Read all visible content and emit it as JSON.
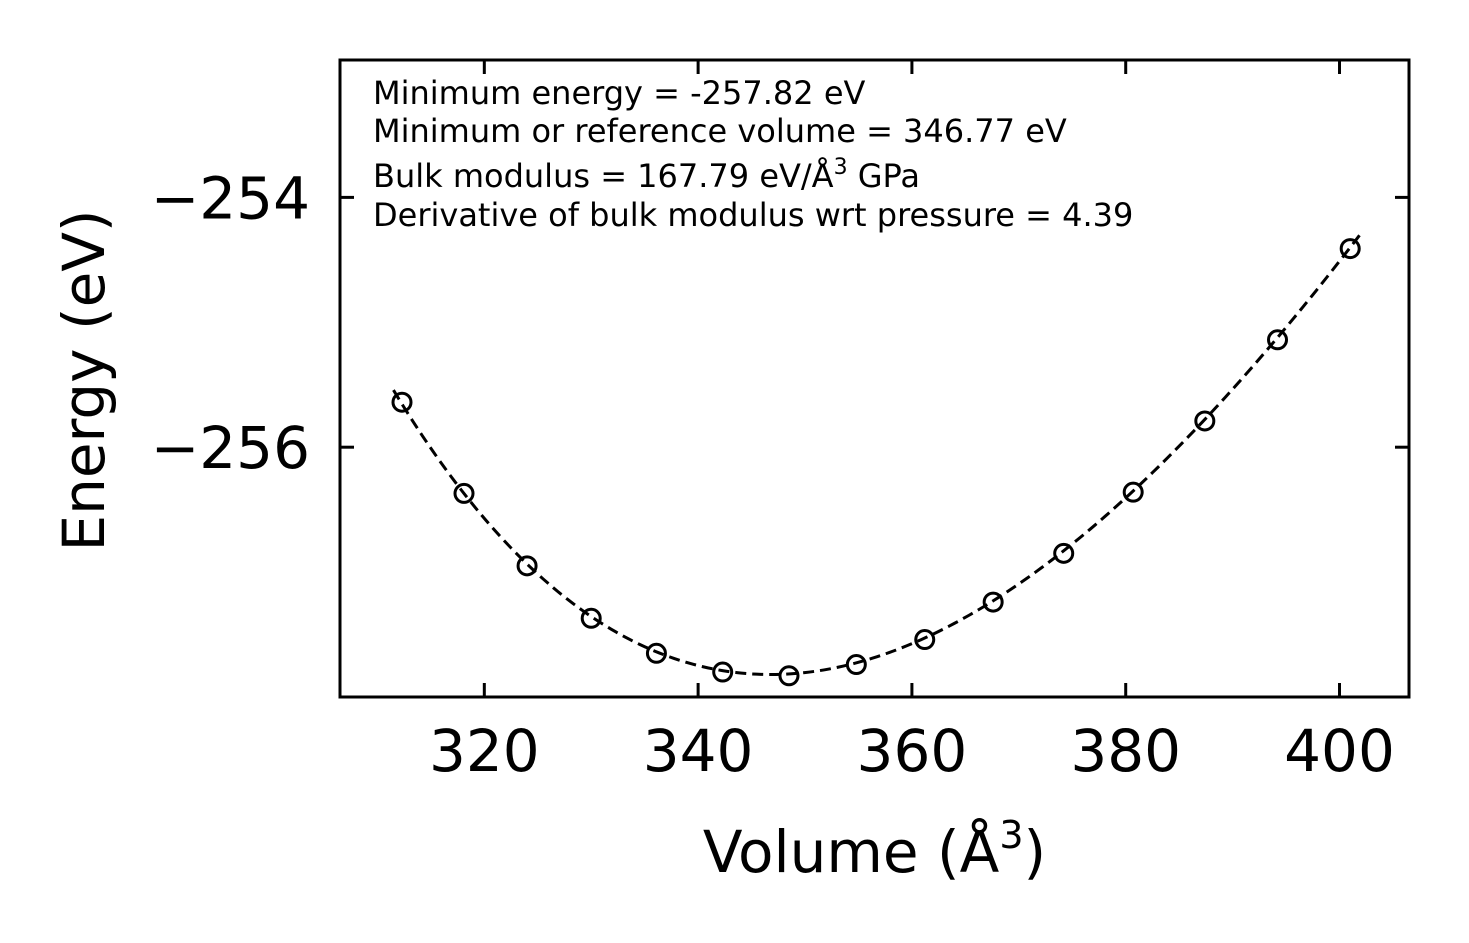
{
  "chart_data": {
    "type": "scatter",
    "title": "",
    "xlabel": "Volume (Å",
    "xlabel_sup": "3",
    "xlabel_close": ")",
    "ylabel": "Energy (eV)",
    "xlim": [
      306.5,
      406.5
    ],
    "ylim": [
      -258.0,
      -252.9
    ],
    "xticks": [
      320,
      340,
      360,
      380,
      400
    ],
    "xtick_labels": [
      "320",
      "340",
      "360",
      "380",
      "400"
    ],
    "yticks": [
      -254,
      -256
    ],
    "ytick_labels": [
      "−254",
      "−256"
    ],
    "grid": false,
    "series": [
      {
        "name": "data",
        "style": "open-circle-markers",
        "x": [
          312.3,
          318.1,
          324.0,
          330.0,
          336.1,
          342.3,
          348.5,
          354.8,
          361.2,
          367.6,
          374.2,
          380.7,
          387.4,
          394.2,
          401.0
        ],
        "y": [
          -255.64,
          -256.37,
          -256.95,
          -257.37,
          -257.65,
          -257.8,
          -257.83,
          -257.74,
          -257.54,
          -257.24,
          -256.85,
          -256.36,
          -255.79,
          -255.14,
          -254.41
        ]
      },
      {
        "name": "fit",
        "style": "dashed-line",
        "eos": "birch-murnaghan",
        "x_range": [
          311.5,
          402.0
        ],
        "E0": -257.82,
        "V0": 346.77,
        "B0_GPa": 167.79,
        "B0_prime": 4.39
      }
    ],
    "annotations": [
      {
        "key": "min_energy",
        "text": "Minimum energy = -257.82 eV"
      },
      {
        "key": "min_volume",
        "text": "Minimum or reference volume = 346.77 eV"
      },
      {
        "key": "bulk_modulus",
        "text": "Bulk modulus = 167.79 eV/Å",
        "sup": "3",
        "after": " GPa"
      },
      {
        "key": "bulk_modulus_deriv",
        "text": "Derivative of bulk modulus wrt pressure = 4.39"
      }
    ]
  }
}
